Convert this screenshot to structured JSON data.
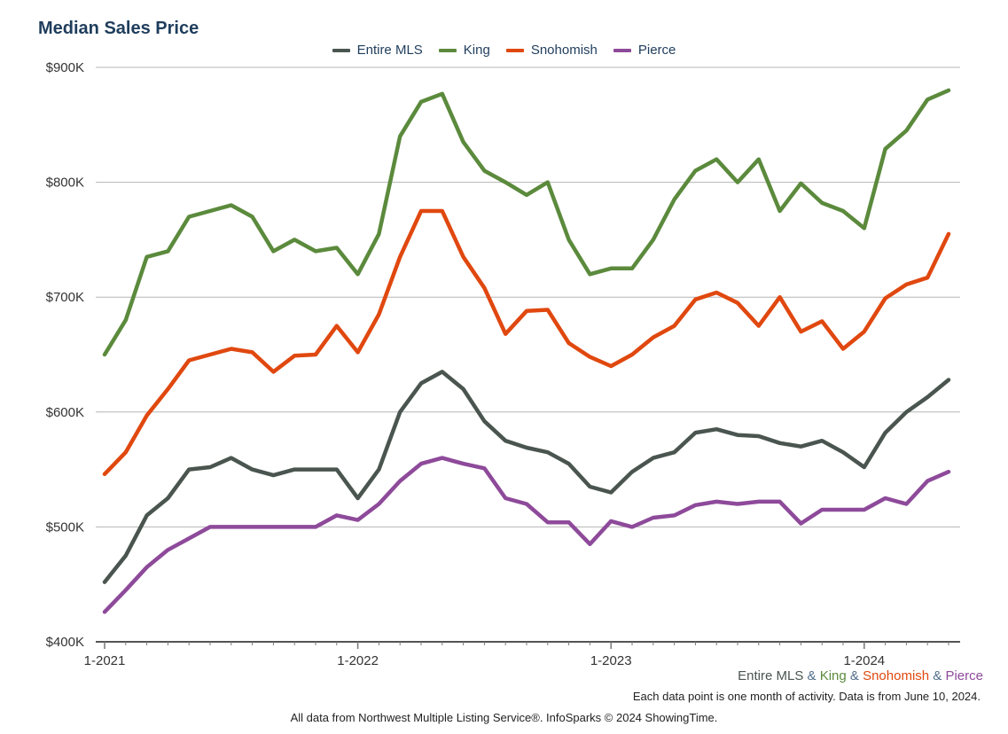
{
  "chart_data": {
    "type": "line",
    "title": "Median Sales Price",
    "x_tick_labels": [
      "1-2021",
      "1-2022",
      "1-2023",
      "1-2024"
    ],
    "y_tick_labels": [
      "$400K",
      "$500K",
      "$600K",
      "$700K",
      "$800K",
      "$900K"
    ],
    "ylim": [
      400000,
      900000
    ],
    "grid": true,
    "legend_position": "top-center",
    "x": [
      "2021-01",
      "2021-02",
      "2021-03",
      "2021-04",
      "2021-05",
      "2021-06",
      "2021-07",
      "2021-08",
      "2021-09",
      "2021-10",
      "2021-11",
      "2021-12",
      "2022-01",
      "2022-02",
      "2022-03",
      "2022-04",
      "2022-05",
      "2022-06",
      "2022-07",
      "2022-08",
      "2022-09",
      "2022-10",
      "2022-11",
      "2022-12",
      "2023-01",
      "2023-02",
      "2023-03",
      "2023-04",
      "2023-05",
      "2023-06",
      "2023-07",
      "2023-08",
      "2023-09",
      "2023-10",
      "2023-11",
      "2023-12",
      "2024-01",
      "2024-02",
      "2024-03",
      "2024-04",
      "2024-05"
    ],
    "series": [
      {
        "name": "Entire MLS",
        "color": "#4a5550",
        "values": [
          452000,
          475000,
          510000,
          525000,
          550000,
          552000,
          560000,
          550000,
          545000,
          550000,
          550000,
          550000,
          525000,
          550000,
          600000,
          625000,
          635000,
          620000,
          592000,
          575000,
          569000,
          565000,
          555000,
          535000,
          530000,
          548000,
          560000,
          565000,
          582000,
          585000,
          580000,
          579000,
          573000,
          570000,
          575000,
          565000,
          552000,
          582000,
          600000,
          613000,
          628000
        ]
      },
      {
        "name": "King",
        "color": "#5b8a3c",
        "values": [
          650000,
          680000,
          735000,
          740000,
          770000,
          775000,
          780000,
          770000,
          740000,
          750000,
          740000,
          743000,
          720000,
          755000,
          840000,
          870000,
          877000,
          835000,
          810000,
          800000,
          789000,
          800000,
          750000,
          720000,
          725000,
          725000,
          750000,
          785000,
          810000,
          820000,
          800000,
          820000,
          775000,
          799000,
          782000,
          775000,
          760000,
          829000,
          845000,
          872000,
          880000
        ]
      },
      {
        "name": "Snohomish",
        "color": "#e0480f",
        "values": [
          546000,
          565000,
          597000,
          620000,
          645000,
          650000,
          655000,
          652000,
          635000,
          649000,
          650000,
          675000,
          652000,
          685000,
          735000,
          775000,
          775000,
          735000,
          708000,
          668000,
          688000,
          689000,
          660000,
          648000,
          640000,
          650000,
          665000,
          675000,
          698000,
          704000,
          695000,
          675000,
          700000,
          670000,
          679000,
          655000,
          670000,
          699000,
          711000,
          717000,
          755000
        ]
      },
      {
        "name": "Pierce",
        "color": "#8e4a9a",
        "values": [
          426000,
          445000,
          465000,
          480000,
          490000,
          500000,
          500000,
          500000,
          500000,
          500000,
          500000,
          510000,
          506000,
          520000,
          540000,
          555000,
          560000,
          555000,
          551000,
          525000,
          520000,
          504000,
          504000,
          485000,
          505000,
          500000,
          508000,
          510000,
          519000,
          522000,
          520000,
          522000,
          522000,
          503000,
          515000,
          515000,
          515000,
          525000,
          520000,
          540000,
          548000
        ]
      }
    ]
  },
  "subcaption": {
    "parts": [
      {
        "text": "Entire MLS",
        "color": "#4a5550"
      },
      {
        "text": " & ",
        "color": "#4f6d8a"
      },
      {
        "text": "King",
        "color": "#5b8a3c"
      },
      {
        "text": " & ",
        "color": "#4f6d8a"
      },
      {
        "text": "Snohomish",
        "color": "#e0480f"
      },
      {
        "text": " & ",
        "color": "#4f6d8a"
      },
      {
        "text": "Pierce",
        "color": "#8e4a9a"
      }
    ]
  },
  "note": "Each data point is one month of activity. Data is from June 10, 2024.",
  "footer": "All data from Northwest Multiple Listing Service®. InfoSparks © 2024 ShowingTime."
}
